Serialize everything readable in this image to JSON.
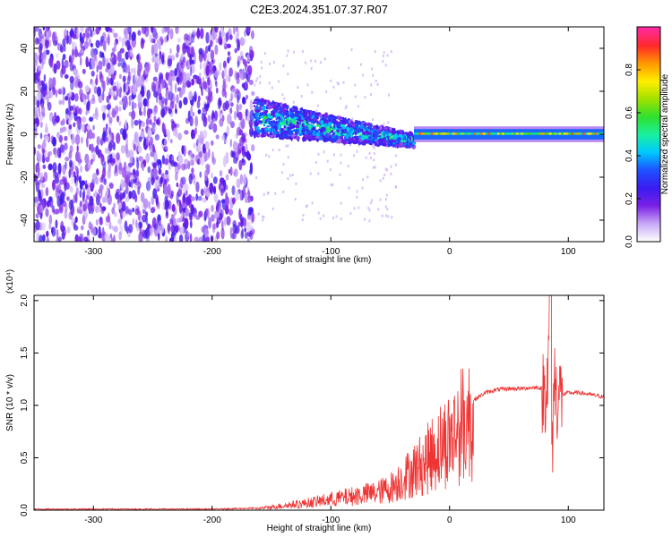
{
  "title": "C2E3.2024.351.07.37.R07",
  "chart_data": [
    {
      "type": "heatmap",
      "xlabel": "Height of straight line (km)",
      "ylabel": "Frequency (Hz)",
      "xlim": [
        -350,
        130
      ],
      "ylim": [
        -50,
        50
      ],
      "x_ticks": [
        -300,
        -200,
        -100,
        0,
        100
      ],
      "x_tick_labels": [
        "-300",
        "-200",
        "-100",
        "0",
        "100"
      ],
      "y_ticks": [
        -40,
        -20,
        0,
        20,
        40
      ],
      "y_tick_labels": [
        "-40",
        "-20",
        "0",
        "20",
        "40"
      ],
      "colorbar": {
        "label": "Normalized spectral amplitude",
        "range": [
          0,
          1
        ],
        "ticks": [
          0.0,
          0.2,
          0.4,
          0.6,
          0.8
        ],
        "tick_labels": [
          "0.0",
          "0.2",
          "0.4",
          "0.6",
          "0.8"
        ],
        "colors": [
          "#ffffff",
          "#c7a8f7",
          "#7a1fe6",
          "#3a1cf0",
          "#1f50ff",
          "#00c8ff",
          "#19f0a0",
          "#30e030",
          "#a0e000",
          "#ffee00",
          "#ff9a00",
          "#ff2a2a",
          "#ff2aa0"
        ]
      },
      "regions": [
        {
          "x": [
            -350,
            -165
          ],
          "freq": [
            -50,
            50
          ],
          "amplitude": [
            0.05,
            0.25
          ]
        },
        {
          "x": [
            -165,
            -30
          ],
          "freq_center_start": 8,
          "freq_center_end": -3,
          "amplitude": [
            0.2,
            0.6
          ]
        },
        {
          "x": [
            -30,
            130
          ],
          "freq": [
            -2,
            2
          ],
          "amplitude": [
            0.4,
            0.9
          ]
        }
      ]
    },
    {
      "type": "line",
      "xlabel": "Height of straight line (km)",
      "ylabel": "SNR (10 * v/v)",
      "y_multiplier": "(x10⁴)",
      "xlim": [
        -350,
        130
      ],
      "ylim": [
        0,
        2.05
      ],
      "x_ticks": [
        -300,
        -200,
        -100,
        0,
        100
      ],
      "x_tick_labels": [
        "-300",
        "-200",
        "-100",
        "0",
        "100"
      ],
      "y_ticks": [
        0.0,
        0.5,
        1.0,
        1.5,
        2.0
      ],
      "y_tick_labels": [
        "0.0",
        "0.5",
        "1.0",
        "1.5",
        "2.0"
      ],
      "series_color": "#ee3333",
      "x": [
        -350,
        -300,
        -250,
        -200,
        -160,
        -140,
        -120,
        -100,
        -80,
        -60,
        -50,
        -40,
        -30,
        -20,
        -10,
        0,
        10,
        20,
        30,
        40,
        50,
        60,
        70,
        75,
        80,
        83,
        85,
        86,
        88,
        90,
        95,
        100,
        110,
        120,
        130
      ],
      "y": [
        0.01,
        0.01,
        0.01,
        0.01,
        0.02,
        0.05,
        0.08,
        0.12,
        0.16,
        0.2,
        0.25,
        0.35,
        0.45,
        0.55,
        0.7,
        0.8,
        0.95,
        1.05,
        1.12,
        1.15,
        1.16,
        1.16,
        1.17,
        1.17,
        1.15,
        1.3,
        1.7,
        0.4,
        1.3,
        1.1,
        1.1,
        1.12,
        1.12,
        1.1,
        1.08
      ]
    }
  ]
}
